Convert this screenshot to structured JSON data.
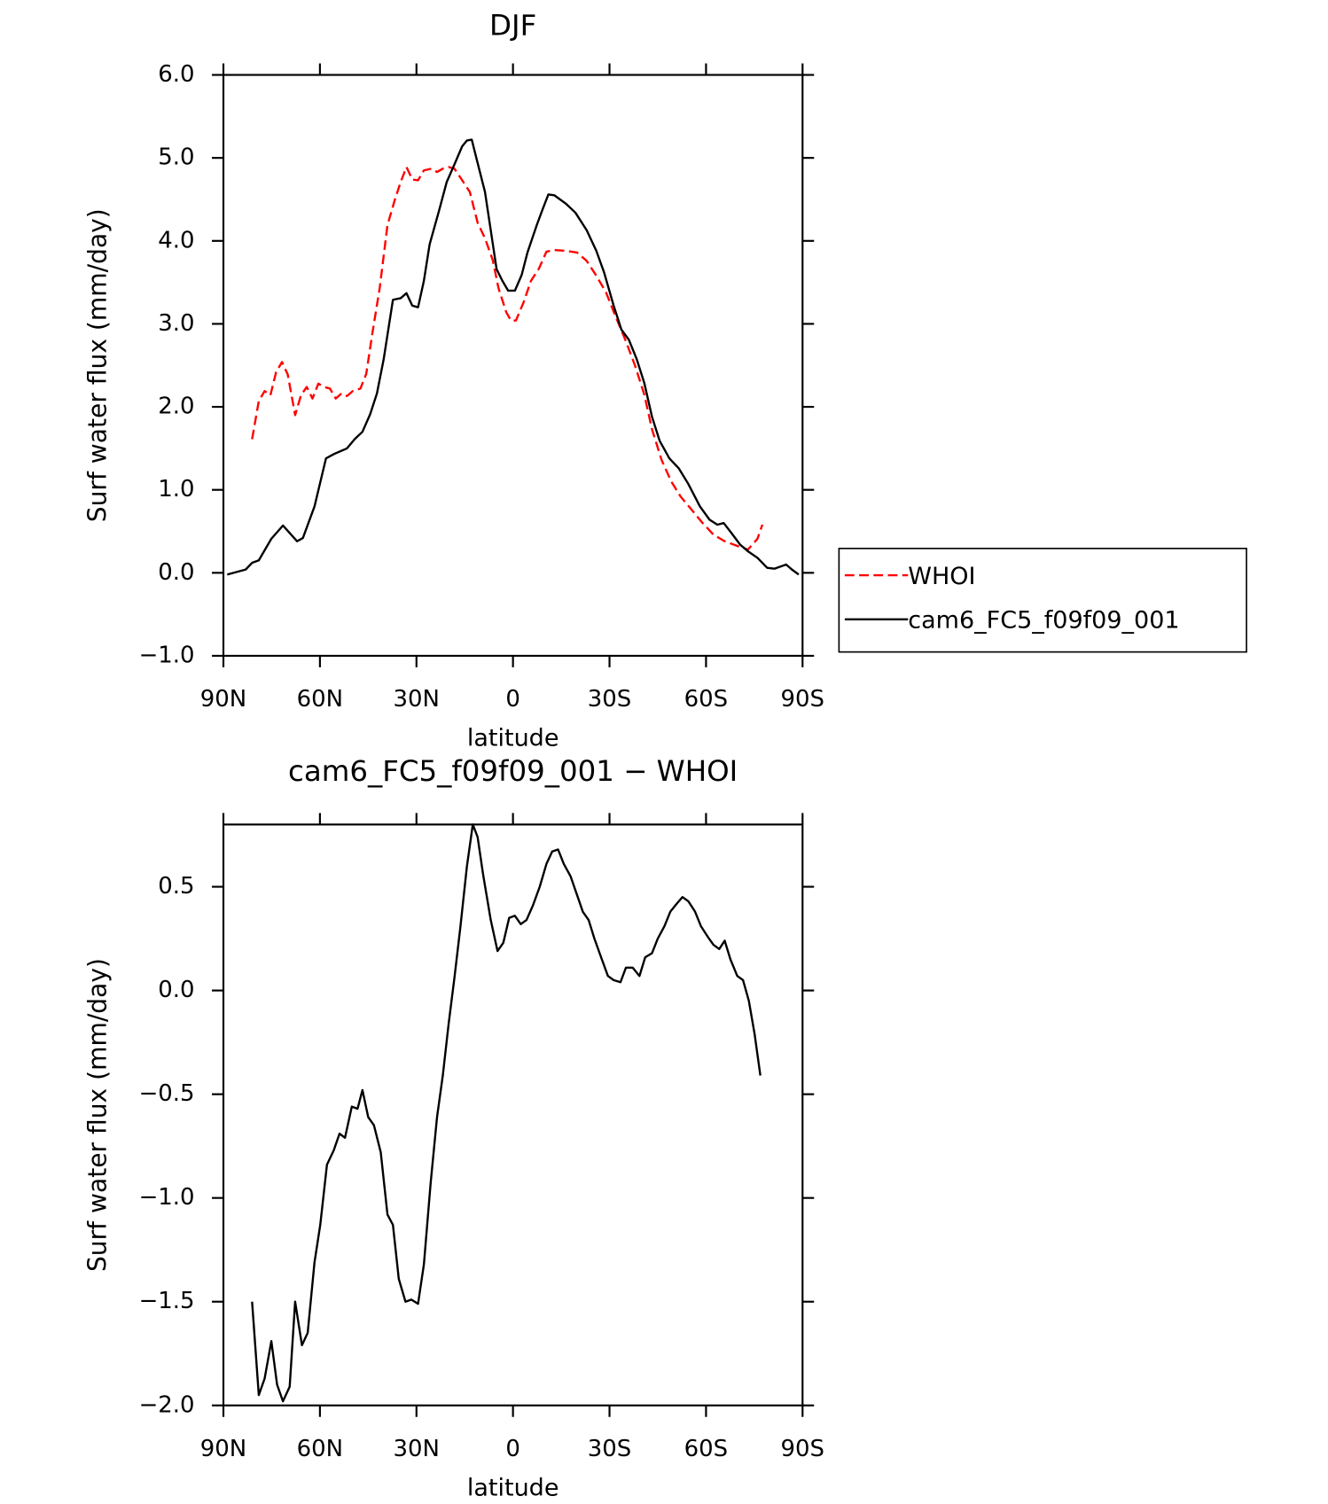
{
  "chart_data": [
    {
      "type": "line",
      "title": "DJF",
      "xlabel": "latitude",
      "ylabel": "Surf water flux (mm/day)",
      "xlim": [
        90,
        -90
      ],
      "xticks": [
        {
          "value": 90,
          "label": "90N"
        },
        {
          "value": 60,
          "label": "60N"
        },
        {
          "value": 30,
          "label": "30N"
        },
        0,
        {
          "value": -30,
          "label": "30S"
        },
        {
          "value": -60,
          "label": "60S"
        },
        {
          "value": -90,
          "label": "90S"
        }
      ],
      "ylim": [
        -1,
        6
      ],
      "yticks": [
        {
          "value": -1,
          "label": "−1.0"
        },
        {
          "value": 0,
          "label": "0.0"
        },
        {
          "value": 1,
          "label": "1.0"
        },
        {
          "value": 2,
          "label": "2.0"
        },
        {
          "value": 3,
          "label": "3.0"
        },
        {
          "value": 4,
          "label": "4.0"
        },
        {
          "value": 5,
          "label": "5.0"
        },
        {
          "value": 6,
          "label": "6.0"
        }
      ],
      "legend": "outside-right",
      "series": [
        {
          "name": "WHOI",
          "color": "#ff0000",
          "linestyle": "dashed",
          "x": [
            81.1,
            79.0,
            77.2,
            75.4,
            73.6,
            71.8,
            70.0,
            67.7,
            65.9,
            64.1,
            62.3,
            60.5,
            58.7,
            56.9,
            55.1,
            53.3,
            51.6,
            49.8,
            47.4,
            45.6,
            43.8,
            41.4,
            39.0,
            36.7,
            34.9,
            33.1,
            31.3,
            29.5,
            27.7,
            25.3,
            23.6,
            21.8,
            20.0,
            18.2,
            15.8,
            13.4,
            11.0,
            8.7,
            6.3,
            4.5,
            2.1,
            0.6,
            -0.9,
            -3.3,
            -5.6,
            -8.0,
            -10.4,
            -12.8,
            -16.4,
            -19.9,
            -22.9,
            -25.9,
            -28.9,
            -31.9,
            -34.9,
            -37.9,
            -40.8,
            -43.2,
            -46.2,
            -49.2,
            -52.1,
            -55.1,
            -58.7,
            -62.3,
            -65.8,
            -70.0,
            -73.0,
            -76.0,
            -77.5
          ],
          "values": [
            1.61,
            2.07,
            2.19,
            2.14,
            2.42,
            2.54,
            2.39,
            1.9,
            2.14,
            2.24,
            2.1,
            2.28,
            2.24,
            2.22,
            2.1,
            2.16,
            2.13,
            2.19,
            2.22,
            2.4,
            2.86,
            3.44,
            4.19,
            4.5,
            4.71,
            4.89,
            4.74,
            4.73,
            4.85,
            4.87,
            4.83,
            4.87,
            4.89,
            4.87,
            4.73,
            4.59,
            4.22,
            4.03,
            3.77,
            3.43,
            3.14,
            3.04,
            3.04,
            3.26,
            3.52,
            3.66,
            3.87,
            3.89,
            3.88,
            3.86,
            3.76,
            3.58,
            3.38,
            3.09,
            2.81,
            2.5,
            2.15,
            1.73,
            1.36,
            1.1,
            0.92,
            0.78,
            0.61,
            0.46,
            0.38,
            0.32,
            0.28,
            0.41,
            0.58
          ]
        },
        {
          "name": "cam6_FC5_f09f09_001",
          "color": "#000000",
          "linestyle": "solid",
          "x": [
            88.8,
            83.1,
            81.1,
            79.0,
            75.1,
            71.5,
            67.1,
            65.3,
            61.7,
            58.1,
            55.7,
            51.6,
            49.2,
            46.8,
            44.4,
            42.3,
            40.2,
            37.3,
            34.9,
            33.1,
            31.3,
            29.5,
            27.7,
            25.9,
            23.0,
            20.6,
            18.2,
            15.8,
            14.3,
            12.8,
            11.0,
            8.7,
            6.9,
            5.1,
            3.3,
            1.5,
            -0.6,
            -2.7,
            -4.5,
            -7.4,
            -9.2,
            -11.0,
            -12.8,
            -16.4,
            -19.4,
            -22.9,
            -25.9,
            -28.3,
            -31.3,
            -33.7,
            -36.0,
            -38.4,
            -40.8,
            -43.2,
            -45.6,
            -48.6,
            -51.5,
            -54.5,
            -58.1,
            -61.1,
            -63.5,
            -65.5,
            -67.9,
            -70.6,
            -73.0,
            -76.0,
            -79.0,
            -81.3,
            -84.9,
            -86.7,
            -88.8
          ],
          "values": [
            -0.02,
            0.04,
            0.12,
            0.15,
            0.41,
            0.57,
            0.38,
            0.42,
            0.8,
            1.38,
            1.43,
            1.5,
            1.61,
            1.7,
            1.91,
            2.16,
            2.57,
            3.29,
            3.31,
            3.37,
            3.22,
            3.2,
            3.52,
            3.96,
            4.36,
            4.71,
            4.92,
            5.14,
            5.21,
            5.22,
            4.94,
            4.59,
            4.13,
            3.66,
            3.52,
            3.4,
            3.4,
            3.59,
            3.86,
            4.19,
            4.38,
            4.56,
            4.55,
            4.45,
            4.34,
            4.13,
            3.88,
            3.62,
            3.22,
            2.93,
            2.81,
            2.58,
            2.29,
            1.88,
            1.59,
            1.38,
            1.26,
            1.07,
            0.8,
            0.64,
            0.58,
            0.6,
            0.48,
            0.34,
            0.26,
            0.18,
            0.06,
            0.05,
            0.1,
            0.04,
            -0.02
          ]
        }
      ]
    },
    {
      "type": "line",
      "title": "cam6_FC5_f09f09_001 − WHOI",
      "xlabel": "latitude",
      "ylabel": "Surf water flux (mm/day)",
      "xlim": [
        90,
        -90
      ],
      "xticks": [
        {
          "value": 90,
          "label": "90N"
        },
        {
          "value": 60,
          "label": "60N"
        },
        {
          "value": 30,
          "label": "30N"
        },
        0,
        {
          "value": -30,
          "label": "30S"
        },
        {
          "value": -60,
          "label": "60S"
        },
        {
          "value": -90,
          "label": "90S"
        }
      ],
      "ylim": [
        -2,
        0.8
      ],
      "yticks": [
        {
          "value": -2,
          "label": "−2.0"
        },
        {
          "value": -1.5,
          "label": "−1.5"
        },
        {
          "value": -1,
          "label": "−1.0"
        },
        {
          "value": -0.5,
          "label": "−0.5"
        },
        {
          "value": 0,
          "label": "0.0"
        },
        {
          "value": 0.5,
          "label": "0.5"
        }
      ],
      "series": [
        {
          "color": "#000000",
          "linestyle": "solid",
          "x": [
            81.1,
            79.0,
            77.2,
            75.1,
            73.3,
            71.5,
            69.4,
            67.7,
            65.6,
            63.8,
            61.7,
            59.9,
            57.8,
            55.7,
            53.9,
            52.2,
            50.1,
            48.3,
            46.8,
            45.0,
            43.2,
            41.1,
            39.0,
            37.3,
            35.5,
            33.4,
            31.6,
            29.5,
            27.7,
            25.6,
            23.6,
            21.8,
            20.0,
            18.2,
            16.4,
            14.3,
            12.5,
            11.0,
            9.3,
            6.9,
            4.8,
            3.0,
            1.2,
            -0.6,
            -2.4,
            -4.2,
            -6.2,
            -8.3,
            -10.4,
            -12.2,
            -14.0,
            -15.8,
            -17.9,
            -19.7,
            -21.7,
            -23.5,
            -25.3,
            -27.4,
            -29.5,
            -31.3,
            -33.4,
            -35.1,
            -37.2,
            -39.3,
            -41.1,
            -43.2,
            -45.0,
            -47.1,
            -48.9,
            -51.0,
            -52.7,
            -54.5,
            -56.6,
            -58.4,
            -60.5,
            -62.3,
            -64.1,
            -65.8,
            -67.6,
            -69.7,
            -71.5,
            -73.3,
            -75.1,
            -76.9
          ],
          "values": [
            -1.5,
            -1.95,
            -1.87,
            -1.69,
            -1.9,
            -1.98,
            -1.91,
            -1.5,
            -1.71,
            -1.65,
            -1.31,
            -1.13,
            -0.84,
            -0.77,
            -0.69,
            -0.71,
            -0.56,
            -0.57,
            -0.48,
            -0.61,
            -0.65,
            -0.78,
            -1.08,
            -1.13,
            -1.39,
            -1.5,
            -1.49,
            -1.51,
            -1.32,
            -0.93,
            -0.61,
            -0.41,
            -0.16,
            0.06,
            0.3,
            0.6,
            0.8,
            0.74,
            0.56,
            0.34,
            0.19,
            0.23,
            0.35,
            0.36,
            0.32,
            0.34,
            0.41,
            0.5,
            0.61,
            0.67,
            0.68,
            0.61,
            0.55,
            0.47,
            0.38,
            0.34,
            0.25,
            0.16,
            0.07,
            0.05,
            0.04,
            0.11,
            0.11,
            0.07,
            0.16,
            0.18,
            0.25,
            0.31,
            0.38,
            0.42,
            0.45,
            0.43,
            0.38,
            0.31,
            0.26,
            0.22,
            0.2,
            0.24,
            0.15,
            0.07,
            0.05,
            -0.05,
            -0.21,
            -0.41
          ]
        }
      ]
    }
  ]
}
